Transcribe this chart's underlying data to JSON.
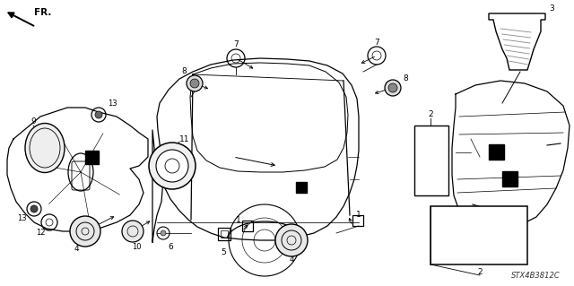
{
  "bg_color": "#ffffff",
  "diagram_code": "STX4B3812C",
  "black": "#000000",
  "gray": "#888888",
  "lgray": "#cccccc",
  "lw_main": 0.9,
  "lw_thin": 0.5
}
